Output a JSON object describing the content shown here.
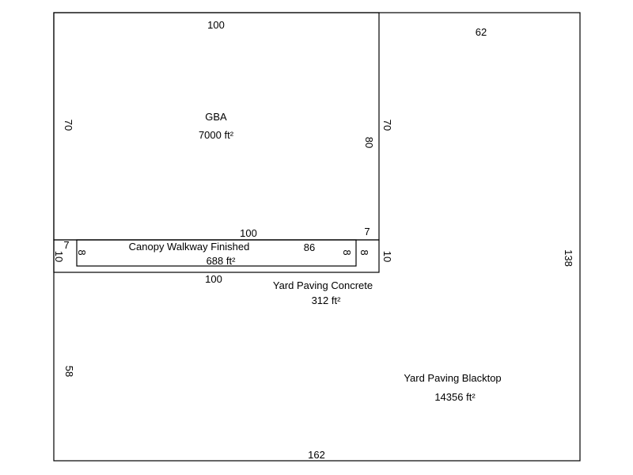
{
  "areas": {
    "gba": {
      "name": "GBA",
      "area": "7000 ft²"
    },
    "canopy": {
      "name": "Canopy Walkway Finished",
      "area": "688 ft²"
    },
    "concrete": {
      "name": "Yard Paving Concrete",
      "area": "312 ft²"
    },
    "blacktop": {
      "name": "Yard Paving Blacktop",
      "area": "14356 ft²"
    }
  },
  "dimensions": {
    "gba_top": "100",
    "gba_left": "70",
    "gba_right_inner": "80",
    "gba_right_outer": "70",
    "yard_top": "62",
    "canopy_top": "100",
    "canopy_mid": "86",
    "canopy_left_small": "7",
    "canopy_right_small": "7",
    "canopy_left_depth": "10",
    "canopy_left_inner": "8",
    "canopy_right_inner_a": "8",
    "canopy_right_inner_b": "8",
    "canopy_right_depth": "10",
    "canopy_bottom": "100",
    "yard_right": "138",
    "yard_left": "58",
    "yard_bottom": "162"
  }
}
